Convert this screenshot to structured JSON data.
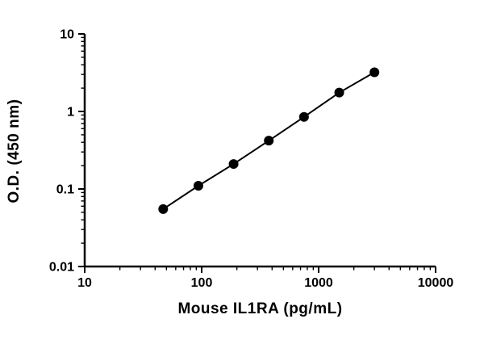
{
  "chart_data": {
    "type": "scatter",
    "title": "",
    "xlabel": "Mouse IL1RA (pg/mL)",
    "ylabel": "O.D. (450 nm)",
    "x_scale": "log",
    "y_scale": "log",
    "xlim": [
      10,
      10000
    ],
    "ylim": [
      0.01,
      10
    ],
    "grid": "off",
    "legend": "none",
    "x_ticks": [
      {
        "value": 10,
        "label": "10"
      },
      {
        "value": 100,
        "label": "100"
      },
      {
        "value": 1000,
        "label": "1000"
      },
      {
        "value": 10000,
        "label": "10000"
      }
    ],
    "y_ticks": [
      {
        "value": 0.01,
        "label": "0.01"
      },
      {
        "value": 0.1,
        "label": "0.1"
      },
      {
        "value": 1,
        "label": "1"
      },
      {
        "value": 10,
        "label": "10"
      }
    ],
    "series": [
      {
        "name": "standard-curve",
        "marker": "filled-circle",
        "line": "solid",
        "color": "#000000",
        "x": [
          46.88,
          93.75,
          187.5,
          375,
          750,
          1500,
          3000
        ],
        "y": [
          0.055,
          0.11,
          0.21,
          0.42,
          0.85,
          1.75,
          3.2
        ]
      }
    ]
  },
  "colors": {
    "axis": "#000000",
    "background": "#ffffff",
    "marker": "#000000"
  }
}
